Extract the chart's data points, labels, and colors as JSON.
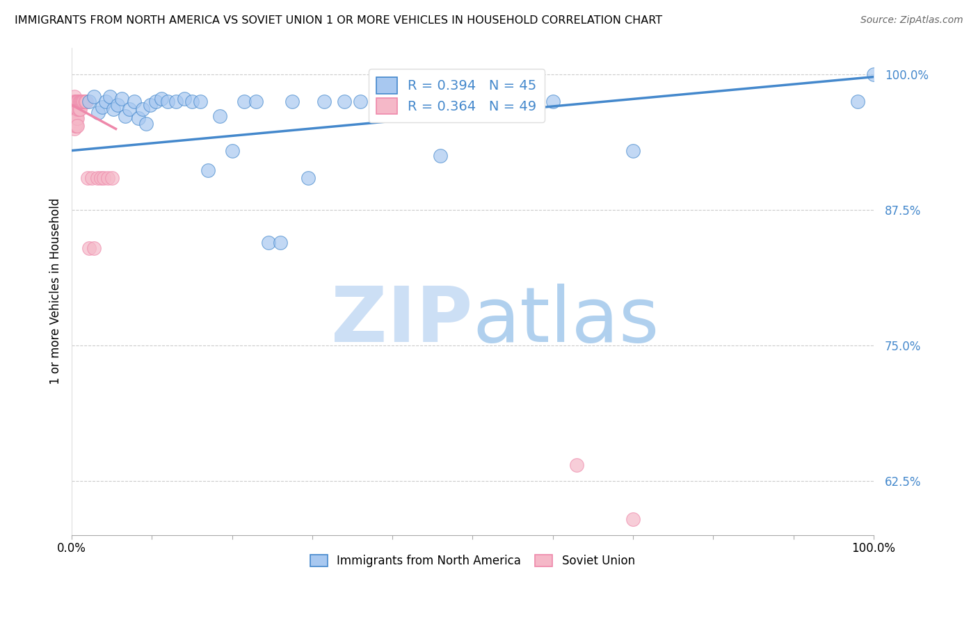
{
  "title": "IMMIGRANTS FROM NORTH AMERICA VS SOVIET UNION 1 OR MORE VEHICLES IN HOUSEHOLD CORRELATION CHART",
  "source": "Source: ZipAtlas.com",
  "ylabel": "1 or more Vehicles in Household",
  "legend_label1": "Immigrants from North America",
  "legend_label2": "Soviet Union",
  "r1": 0.394,
  "n1": 45,
  "r2": 0.364,
  "n2": 49,
  "xlim": [
    0.0,
    1.0
  ],
  "ylim": [
    0.575,
    1.025
  ],
  "yticks": [
    0.625,
    0.75,
    0.875,
    1.0
  ],
  "ytick_labels": [
    "62.5%",
    "75.0%",
    "87.5%",
    "100.0%"
  ],
  "color_blue": "#a8c8f0",
  "color_pink": "#f5b8c8",
  "trendline_color_blue": "#4488cc",
  "trendline_color_pink": "#ee88aa",
  "background_color": "#ffffff",
  "watermark_color_zip": "#ccdff5",
  "watermark_color_atlas": "#b0d0ee",
  "blue_points_x": [
    0.022,
    0.028,
    0.033,
    0.038,
    0.042,
    0.048,
    0.052,
    0.057,
    0.062,
    0.067,
    0.072,
    0.078,
    0.083,
    0.088,
    0.093,
    0.098,
    0.105,
    0.112,
    0.12,
    0.13,
    0.14,
    0.15,
    0.16,
    0.17,
    0.185,
    0.2,
    0.215,
    0.23,
    0.245,
    0.26,
    0.275,
    0.295,
    0.315,
    0.34,
    0.36,
    0.38,
    0.4,
    0.43,
    0.46,
    0.5,
    0.54,
    0.6,
    0.7,
    0.98,
    1.0
  ],
  "blue_points_y": [
    0.975,
    0.98,
    0.965,
    0.97,
    0.975,
    0.98,
    0.968,
    0.972,
    0.978,
    0.962,
    0.968,
    0.975,
    0.96,
    0.968,
    0.955,
    0.972,
    0.975,
    0.978,
    0.975,
    0.975,
    0.978,
    0.975,
    0.975,
    0.912,
    0.962,
    0.93,
    0.975,
    0.975,
    0.845,
    0.845,
    0.975,
    0.905,
    0.975,
    0.975,
    0.975,
    0.975,
    0.975,
    0.975,
    0.925,
    0.975,
    0.975,
    0.975,
    0.93,
    0.975,
    1.0
  ],
  "blue_trend_x": [
    0.0,
    1.0
  ],
  "blue_trend_y": [
    0.93,
    0.998
  ],
  "pink_points_x": [
    0.002,
    0.002,
    0.002,
    0.003,
    0.003,
    0.003,
    0.003,
    0.003,
    0.004,
    0.004,
    0.004,
    0.004,
    0.005,
    0.005,
    0.005,
    0.005,
    0.006,
    0.006,
    0.006,
    0.006,
    0.007,
    0.007,
    0.007,
    0.007,
    0.008,
    0.008,
    0.009,
    0.009,
    0.01,
    0.01,
    0.011,
    0.012,
    0.013,
    0.014,
    0.015,
    0.016,
    0.017,
    0.018,
    0.02,
    0.022,
    0.025,
    0.028,
    0.032,
    0.036,
    0.04,
    0.045,
    0.05,
    0.63,
    0.7
  ],
  "pink_points_y": [
    0.975,
    0.968,
    0.96,
    0.98,
    0.972,
    0.965,
    0.958,
    0.95,
    0.975,
    0.968,
    0.96,
    0.953,
    0.975,
    0.968,
    0.962,
    0.955,
    0.975,
    0.968,
    0.96,
    0.953,
    0.975,
    0.968,
    0.96,
    0.953,
    0.975,
    0.968,
    0.975,
    0.968,
    0.975,
    0.968,
    0.975,
    0.975,
    0.975,
    0.975,
    0.975,
    0.975,
    0.975,
    0.975,
    0.905,
    0.84,
    0.905,
    0.84,
    0.905,
    0.905,
    0.905,
    0.905,
    0.905,
    0.64,
    0.59
  ],
  "pink_trend_x": [
    0.0,
    0.055
  ],
  "pink_trend_y": [
    0.972,
    0.95
  ]
}
